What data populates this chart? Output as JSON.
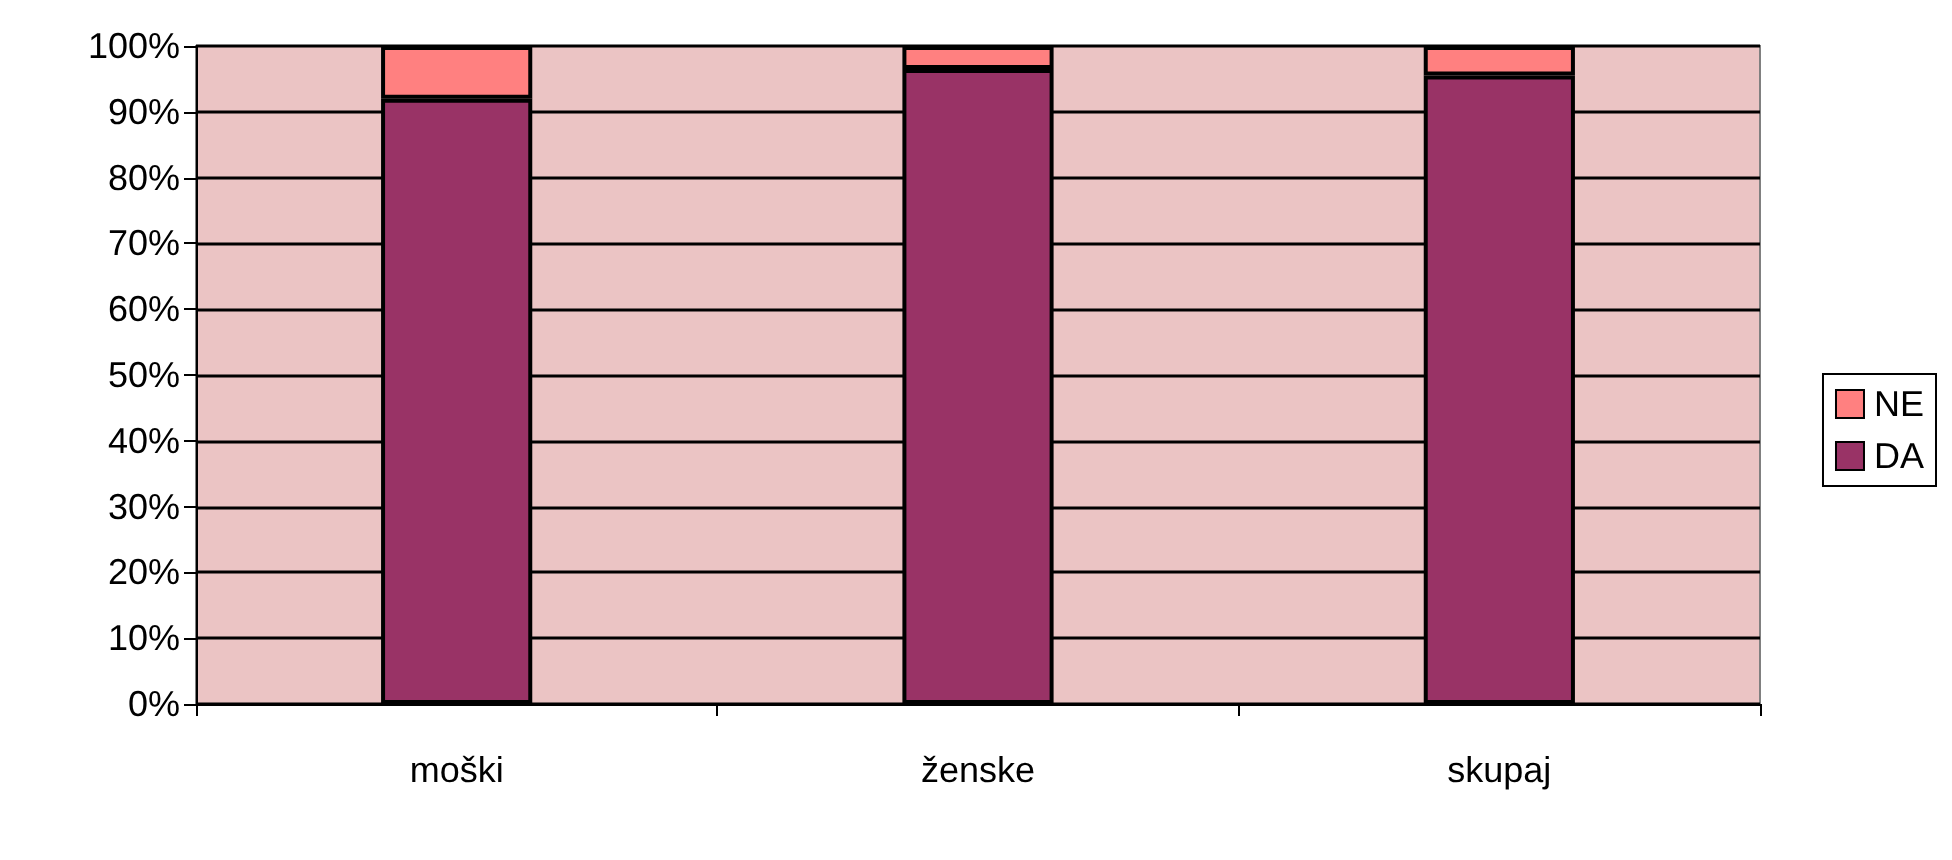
{
  "chart_data": {
    "type": "bar",
    "stacked": true,
    "categories": [
      "moški",
      "ženske",
      "skupaj"
    ],
    "series": [
      {
        "name": "DA",
        "color": "#993366",
        "values": [
          92,
          96.5,
          95.5
        ]
      },
      {
        "name": "NE",
        "color": "#ff8080",
        "values": [
          8,
          3.5,
          4.5
        ]
      }
    ],
    "ylim": [
      0,
      100
    ],
    "yticks": [
      {
        "value": 0,
        "label": "0%"
      },
      {
        "value": 10,
        "label": "10%"
      },
      {
        "value": 20,
        "label": "20%"
      },
      {
        "value": 30,
        "label": "30%"
      },
      {
        "value": 40,
        "label": "40%"
      },
      {
        "value": 50,
        "label": "50%"
      },
      {
        "value": 60,
        "label": "60%"
      },
      {
        "value": 70,
        "label": "70%"
      },
      {
        "value": 80,
        "label": "80%"
      },
      {
        "value": 90,
        "label": "90%"
      },
      {
        "value": 100,
        "label": "100%"
      }
    ],
    "grid": "y",
    "legend": "right"
  }
}
